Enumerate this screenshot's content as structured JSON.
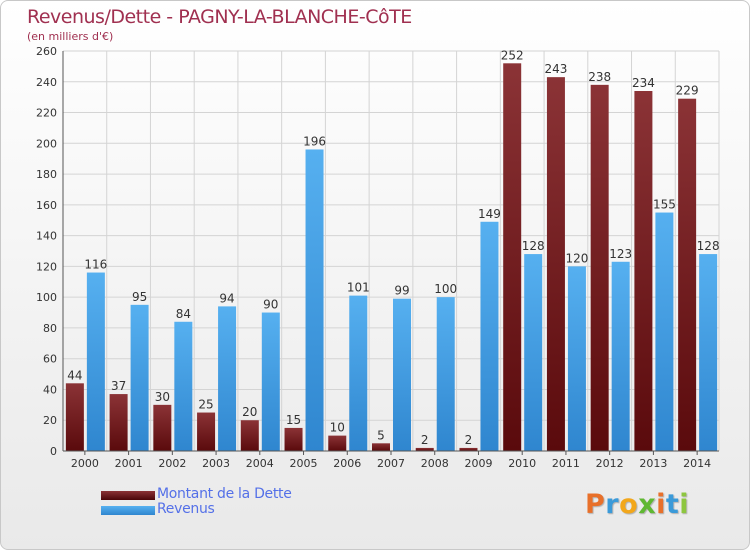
{
  "header": {
    "title": "Revenus/Dette - PAGNY-LA-BLANCHE-CôTE",
    "subtitle": "(en milliers d'€)"
  },
  "legend": {
    "items": [
      {
        "label": "Montant de la Dette",
        "color": "#7a1a1c"
      },
      {
        "label": "Revenus",
        "color": "#4aa3e6"
      }
    ]
  },
  "logo": {
    "letters": [
      "P",
      "r",
      "o",
      "x",
      "i",
      "t",
      "i"
    ],
    "colors": [
      "#e8702a",
      "#3a9ad9",
      "#f2a71b",
      "#5fb832",
      "#e8702a",
      "#3a9ad9",
      "#8dc63f"
    ]
  },
  "chart_data": {
    "type": "bar",
    "categories": [
      "2000",
      "2001",
      "2002",
      "2003",
      "2004",
      "2005",
      "2006",
      "2007",
      "2008",
      "2009",
      "2010",
      "2011",
      "2012",
      "2013",
      "2014"
    ],
    "series": [
      {
        "name": "Montant de la Dette",
        "color": "#7a1a1c",
        "values": [
          44,
          37,
          30,
          25,
          20,
          15,
          10,
          5,
          2,
          2,
          252,
          243,
          238,
          234,
          229
        ]
      },
      {
        "name": "Revenus",
        "color": "#4aa3e6",
        "values": [
          116,
          95,
          84,
          94,
          90,
          196,
          101,
          99,
          100,
          149,
          128,
          120,
          123,
          155,
          128
        ]
      }
    ],
    "yticks": [
      0,
      20,
      40,
      60,
      80,
      100,
      120,
      140,
      160,
      180,
      200,
      220,
      240,
      260
    ],
    "ylim": [
      0,
      260
    ],
    "grid": true,
    "legend_position": "bottom-left"
  }
}
